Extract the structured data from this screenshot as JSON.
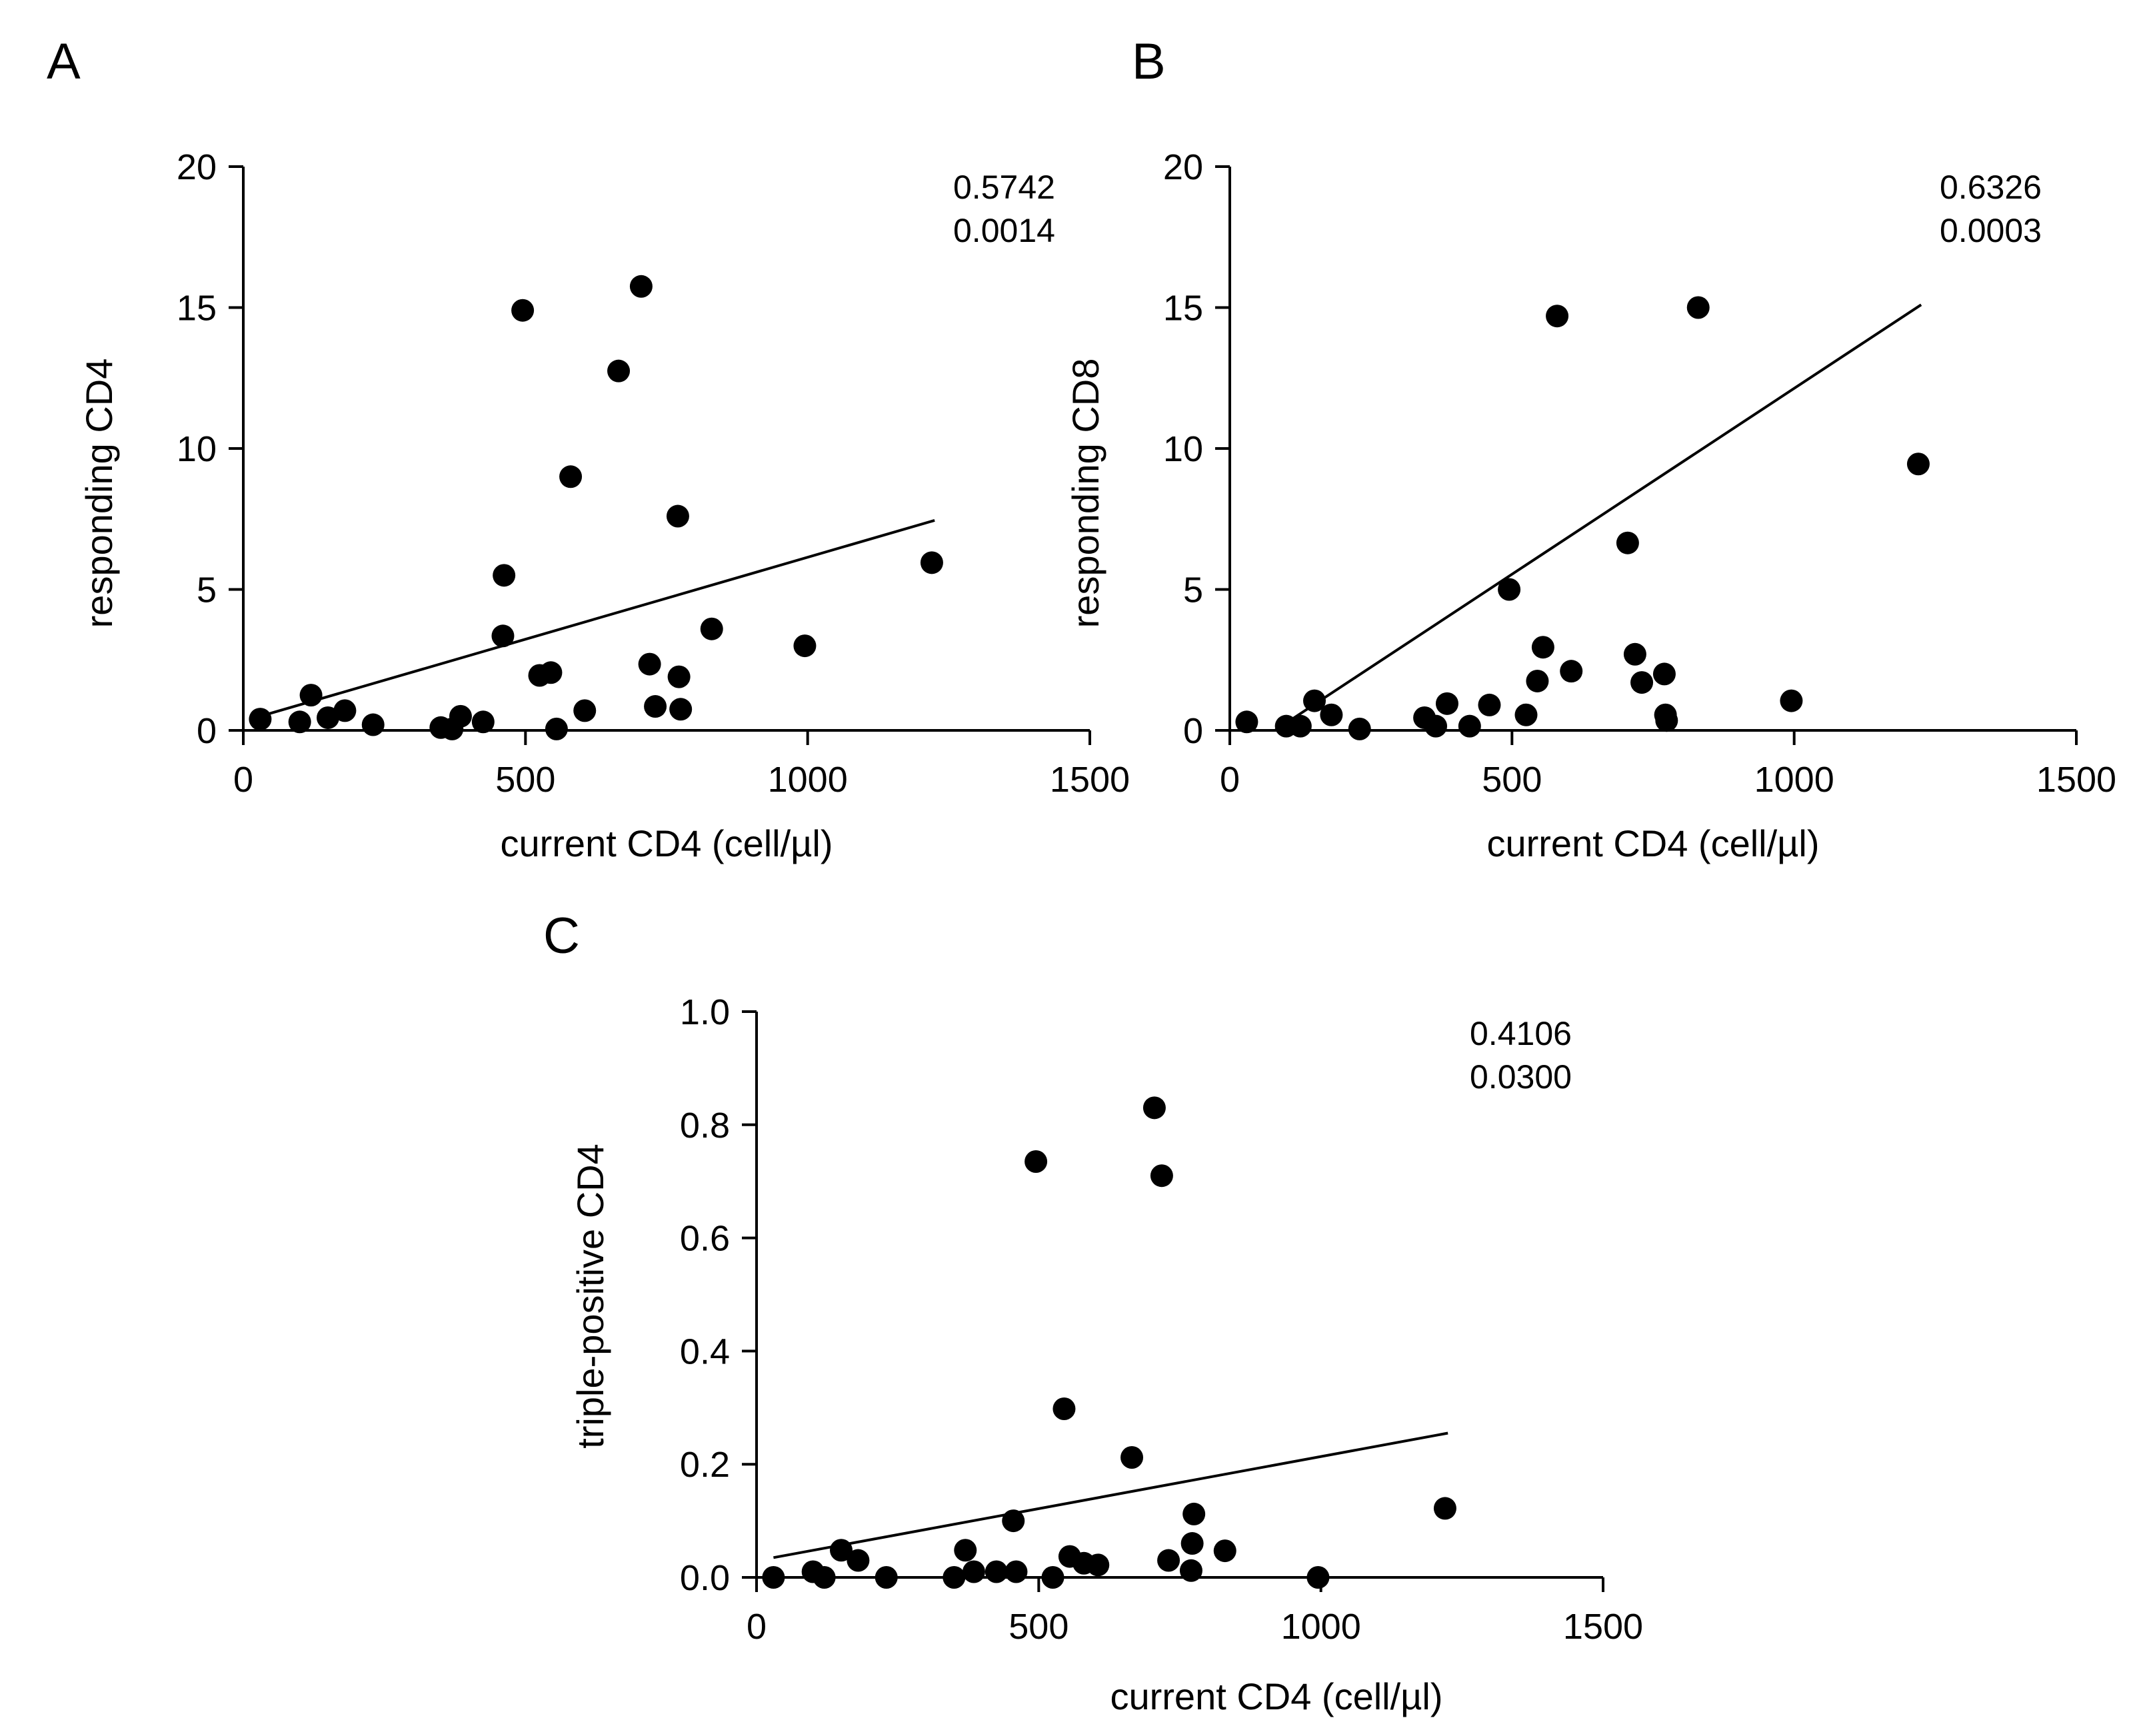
{
  "chart_data": [
    {
      "type": "scatter",
      "panel": "A",
      "xlabel": "current CD4 (cell/µl)",
      "ylabel": "responding CD4",
      "xlim": [
        0,
        1500
      ],
      "ylim": [
        0,
        20
      ],
      "xticks": [
        0,
        500,
        1000,
        1500
      ],
      "yticks": [
        0,
        5,
        10,
        15,
        20
      ],
      "xtick_labels": [
        "0",
        "500",
        "1000",
        "1500"
      ],
      "ytick_labels": [
        "0",
        "5",
        "10",
        "15",
        "20"
      ],
      "annotations": [
        "0.5742",
        "0.0014"
      ],
      "fit_line": {
        "x": [
          30,
          1225
        ],
        "y": [
          0.5,
          7.45
        ]
      },
      "points": [
        {
          "x": 30,
          "y": 0.4
        },
        {
          "x": 100,
          "y": 0.3
        },
        {
          "x": 120,
          "y": 1.25
        },
        {
          "x": 150,
          "y": 0.45
        },
        {
          "x": 180,
          "y": 0.7
        },
        {
          "x": 230,
          "y": 0.2
        },
        {
          "x": 350,
          "y": 0.1
        },
        {
          "x": 370,
          "y": 0.05
        },
        {
          "x": 385,
          "y": 0.5
        },
        {
          "x": 425,
          "y": 0.3
        },
        {
          "x": 460,
          "y": 3.35
        },
        {
          "x": 462,
          "y": 5.5
        },
        {
          "x": 495,
          "y": 14.9
        },
        {
          "x": 525,
          "y": 1.95
        },
        {
          "x": 545,
          "y": 2.05
        },
        {
          "x": 555,
          "y": 0.05
        },
        {
          "x": 580,
          "y": 9.0
        },
        {
          "x": 605,
          "y": 0.7
        },
        {
          "x": 665,
          "y": 12.75
        },
        {
          "x": 705,
          "y": 15.75
        },
        {
          "x": 720,
          "y": 2.35
        },
        {
          "x": 730,
          "y": 0.85
        },
        {
          "x": 770,
          "y": 7.6
        },
        {
          "x": 772,
          "y": 1.9
        },
        {
          "x": 775,
          "y": 0.75
        },
        {
          "x": 830,
          "y": 3.6
        },
        {
          "x": 995,
          "y": 3.0
        },
        {
          "x": 1220,
          "y": 5.95
        }
      ]
    },
    {
      "type": "scatter",
      "panel": "B",
      "xlabel": "current CD4 (cell/µl)",
      "ylabel": "responding CD8",
      "xlim": [
        0,
        1500
      ],
      "ylim": [
        0,
        20
      ],
      "xticks": [
        0,
        500,
        1000,
        1500
      ],
      "yticks": [
        0,
        5,
        10,
        15,
        20
      ],
      "xtick_labels": [
        "0",
        "500",
        "1000",
        "1500"
      ],
      "ytick_labels": [
        "0",
        "5",
        "10",
        "15",
        "20"
      ],
      "annotations": [
        "0.6326",
        "0.0003"
      ],
      "fit_line": {
        "x": [
          80,
          1225
        ],
        "y": [
          0.0,
          15.1
        ]
      },
      "points": [
        {
          "x": 30,
          "y": 0.3
        },
        {
          "x": 100,
          "y": 0.15
        },
        {
          "x": 125,
          "y": 0.15
        },
        {
          "x": 150,
          "y": 1.05
        },
        {
          "x": 180,
          "y": 0.55
        },
        {
          "x": 230,
          "y": 0.05
        },
        {
          "x": 345,
          "y": 0.45
        },
        {
          "x": 365,
          "y": 0.15
        },
        {
          "x": 385,
          "y": 0.95
        },
        {
          "x": 425,
          "y": 0.15
        },
        {
          "x": 460,
          "y": 0.9
        },
        {
          "x": 495,
          "y": 5.0
        },
        {
          "x": 525,
          "y": 0.55
        },
        {
          "x": 545,
          "y": 1.75
        },
        {
          "x": 555,
          "y": 2.95
        },
        {
          "x": 580,
          "y": 14.7
        },
        {
          "x": 605,
          "y": 2.1
        },
        {
          "x": 705,
          "y": 6.65
        },
        {
          "x": 718,
          "y": 2.7
        },
        {
          "x": 730,
          "y": 1.7
        },
        {
          "x": 770,
          "y": 2.0
        },
        {
          "x": 772,
          "y": 0.55
        },
        {
          "x": 774,
          "y": 0.35
        },
        {
          "x": 830,
          "y": 15.0
        },
        {
          "x": 995,
          "y": 1.05
        },
        {
          "x": 1220,
          "y": 9.45
        }
      ]
    },
    {
      "type": "scatter",
      "panel": "C",
      "xlabel": "current CD4 (cell/µl)",
      "ylabel": "triple-positive CD4",
      "xlim": [
        0,
        1500
      ],
      "ylim": [
        0,
        1.0
      ],
      "xticks": [
        0,
        500,
        1000,
        1500
      ],
      "yticks": [
        0,
        0.2,
        0.4,
        0.6,
        0.8,
        1.0
      ],
      "xtick_labels": [
        "0",
        "500",
        "1000",
        "1500"
      ],
      "ytick_labels": [
        "0.0",
        "0.2",
        "0.4",
        "0.6",
        "0.8",
        "1.0"
      ],
      "annotations": [
        "0.4106",
        "0.0300"
      ],
      "fit_line": {
        "x": [
          30,
          1225
        ],
        "y": [
          0.035,
          0.255
        ]
      },
      "points": [
        {
          "x": 30,
          "y": 0.0
        },
        {
          "x": 100,
          "y": 0.01
        },
        {
          "x": 120,
          "y": 0.0
        },
        {
          "x": 150,
          "y": 0.048
        },
        {
          "x": 180,
          "y": 0.03
        },
        {
          "x": 230,
          "y": 0.0
        },
        {
          "x": 350,
          "y": 0.0
        },
        {
          "x": 370,
          "y": 0.048
        },
        {
          "x": 385,
          "y": 0.01
        },
        {
          "x": 425,
          "y": 0.01
        },
        {
          "x": 455,
          "y": 0.1
        },
        {
          "x": 460,
          "y": 0.01
        },
        {
          "x": 495,
          "y": 0.735
        },
        {
          "x": 525,
          "y": 0.0
        },
        {
          "x": 545,
          "y": 0.298
        },
        {
          "x": 555,
          "y": 0.037
        },
        {
          "x": 580,
          "y": 0.025
        },
        {
          "x": 605,
          "y": 0.022
        },
        {
          "x": 665,
          "y": 0.212
        },
        {
          "x": 705,
          "y": 0.83
        },
        {
          "x": 718,
          "y": 0.71
        },
        {
          "x": 730,
          "y": 0.03
        },
        {
          "x": 770,
          "y": 0.012
        },
        {
          "x": 772,
          "y": 0.06
        },
        {
          "x": 775,
          "y": 0.112
        },
        {
          "x": 830,
          "y": 0.047
        },
        {
          "x": 995,
          "y": 0.0
        },
        {
          "x": 1220,
          "y": 0.122
        }
      ]
    }
  ]
}
